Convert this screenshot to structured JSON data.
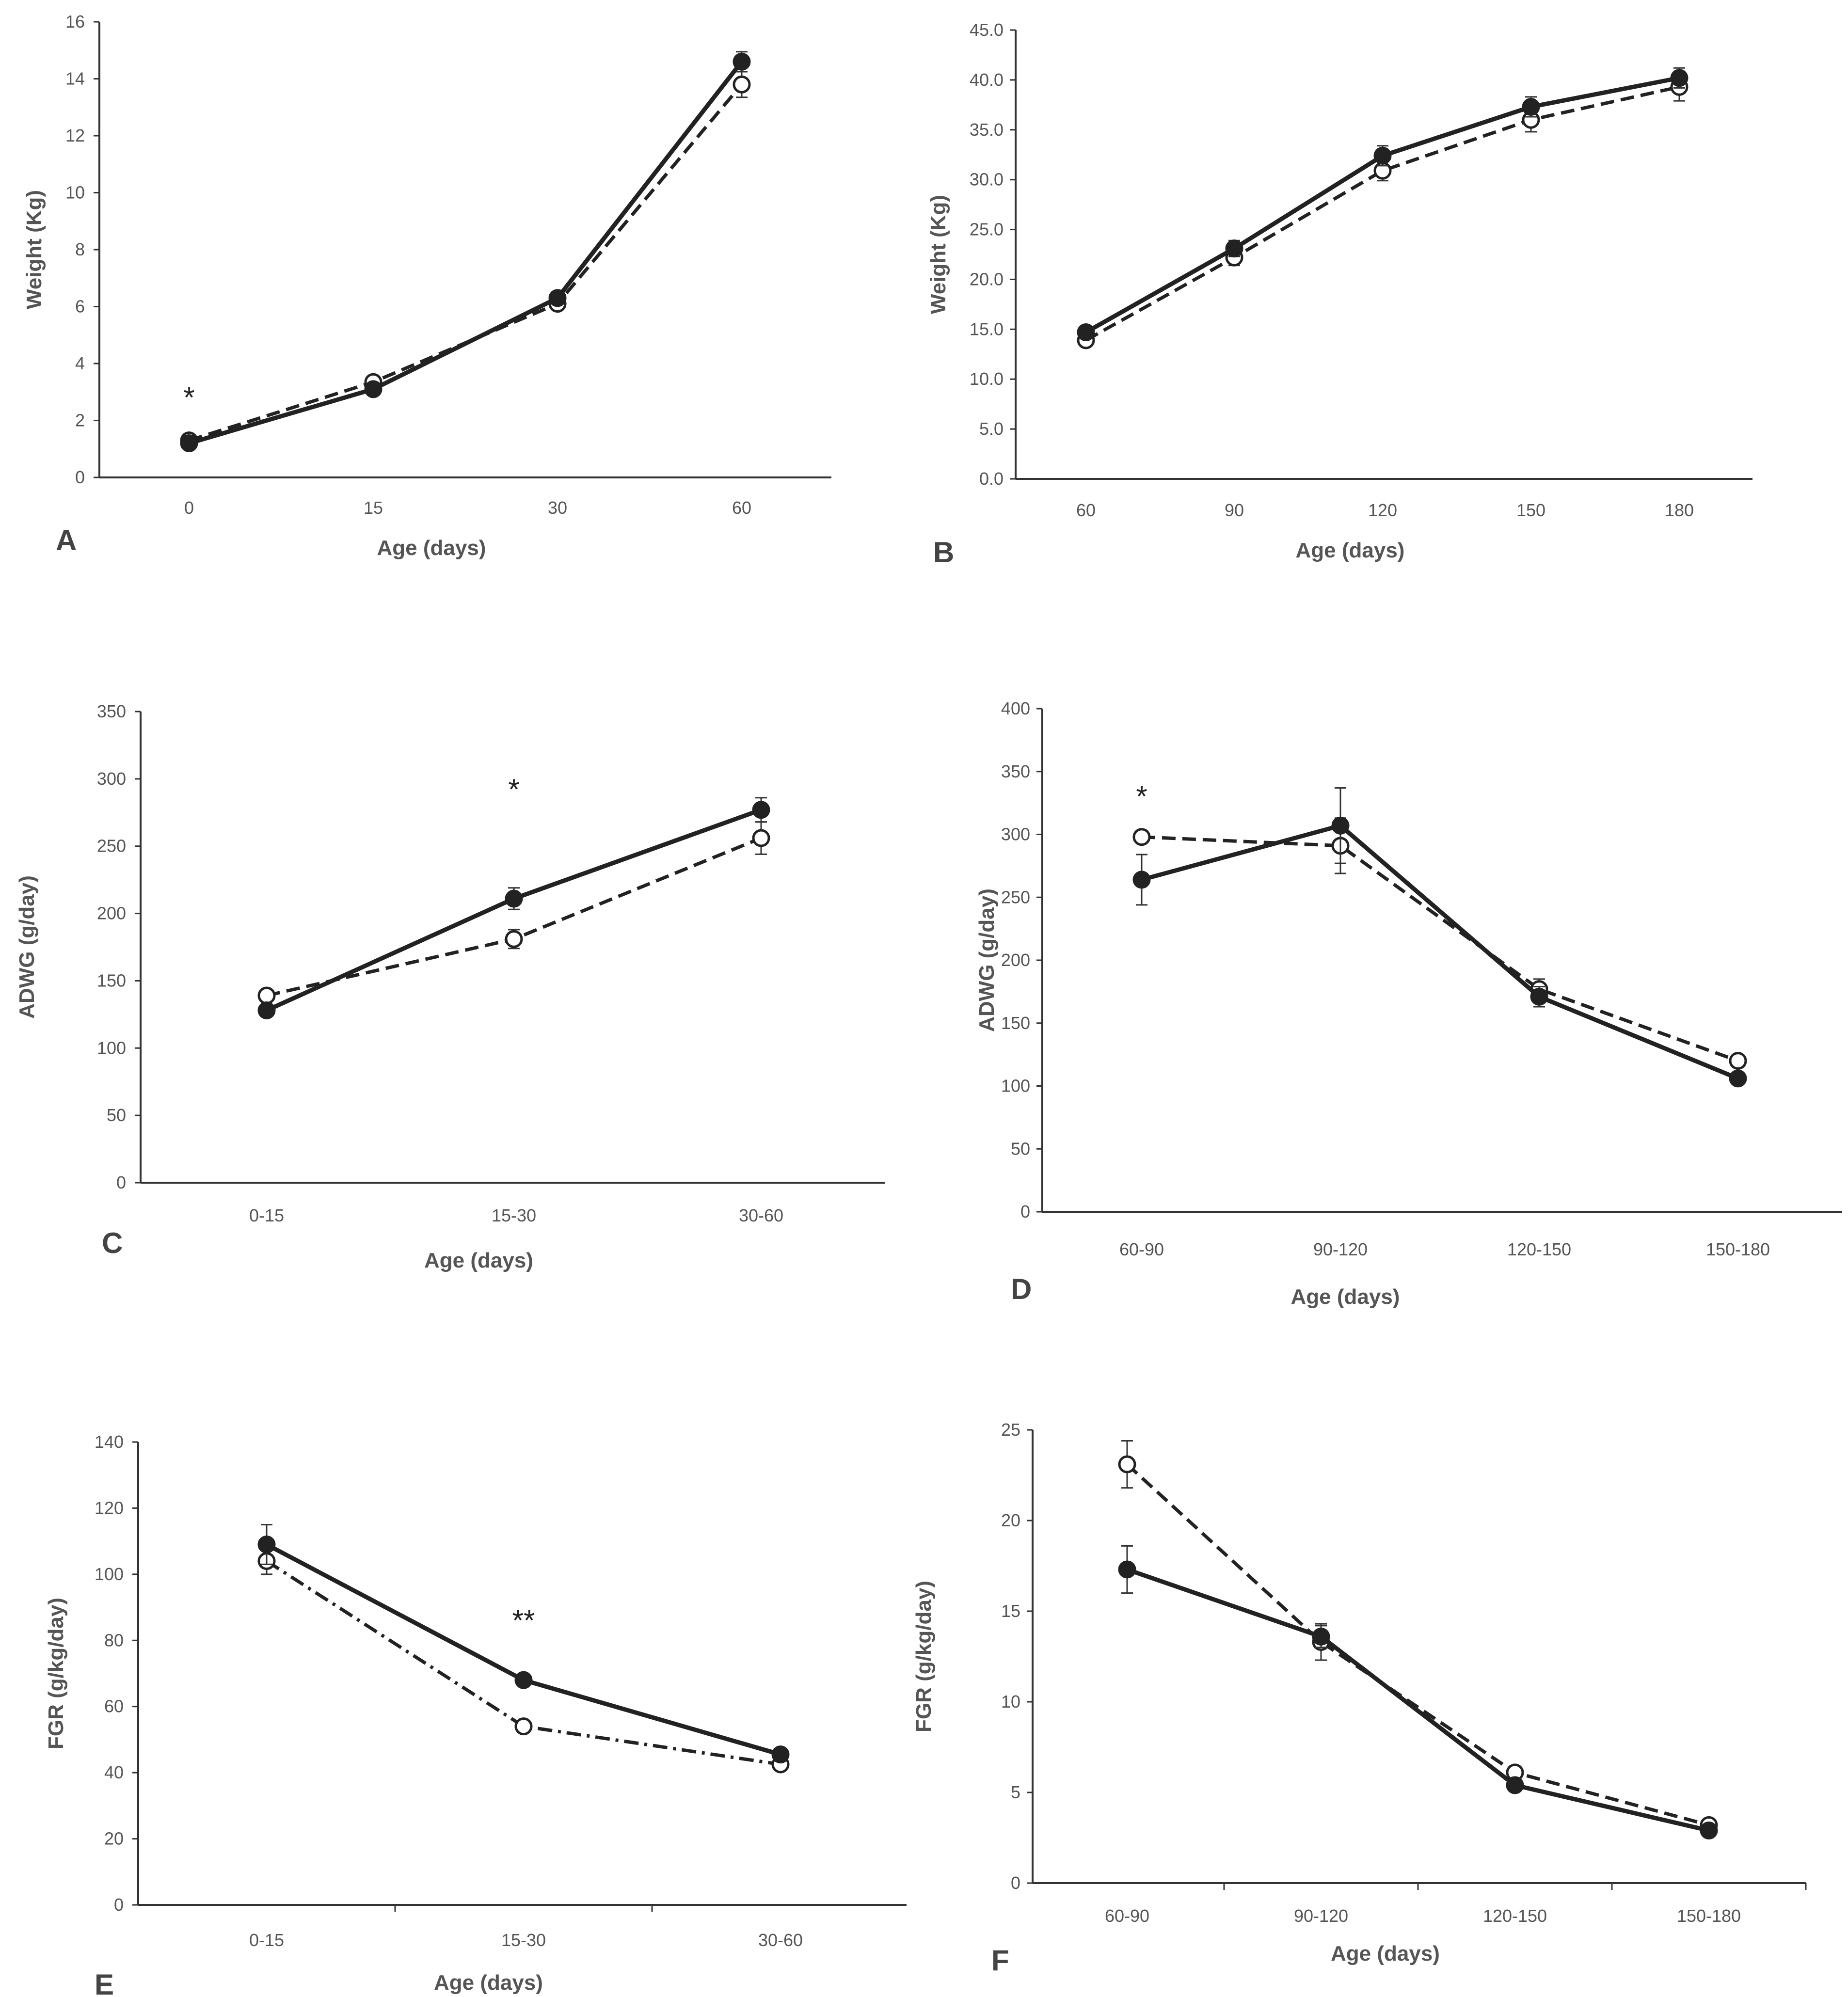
{
  "chart_data": [
    {
      "id": "A",
      "type": "line",
      "panel_label": "A",
      "categories": [
        "0",
        "15",
        "30",
        "60"
      ],
      "xlabel": "Age (days)",
      "ylabel": "Weight (Kg)",
      "ylim": [
        0,
        16
      ],
      "yticks": [
        "0",
        "2",
        "4",
        "6",
        "8",
        "10",
        "12",
        "14",
        "16"
      ],
      "series": [
        {
          "name": "solid",
          "style": "solid",
          "marker": "filled",
          "values": [
            1.2,
            3.1,
            6.3,
            14.6
          ],
          "err": [
            0.1,
            0.15,
            0.2,
            0.35
          ]
        },
        {
          "name": "dashed",
          "style": "dashed",
          "marker": "open",
          "values": [
            1.3,
            3.35,
            6.1,
            13.8
          ],
          "err": [
            0.1,
            0.15,
            0.2,
            0.45
          ]
        }
      ],
      "annotations": [
        {
          "text": "*",
          "cat": 0,
          "y": 2.8
        }
      ]
    },
    {
      "id": "B",
      "type": "line",
      "panel_label": "B",
      "categories": [
        "60",
        "90",
        "120",
        "150",
        "180"
      ],
      "xlabel": "Age (days)",
      "ylabel": "Weight (Kg)",
      "ylim": [
        0,
        45
      ],
      "yticks": [
        "0.0",
        "5.0",
        "10.0",
        "15.0",
        "20.0",
        "25.0",
        "30.0",
        "35.0",
        "40.0",
        "45.0"
      ],
      "series": [
        {
          "name": "solid",
          "style": "solid",
          "marker": "filled",
          "values": [
            14.7,
            23.1,
            32.4,
            37.3,
            40.2
          ],
          "err": [
            0.4,
            0.8,
            1.0,
            1.0,
            1.0
          ]
        },
        {
          "name": "dashed",
          "style": "dashed",
          "marker": "open",
          "values": [
            13.9,
            22.2,
            30.9,
            36.0,
            39.3
          ],
          "err": [
            0.4,
            0.8,
            1.0,
            1.2,
            1.4
          ]
        }
      ],
      "annotations": []
    },
    {
      "id": "C",
      "type": "line",
      "panel_label": "C",
      "categories": [
        "0-15",
        "15-30",
        "30-60"
      ],
      "xlabel": "Age (days)",
      "ylabel": "ADWG (g/day)",
      "ylim": [
        0,
        350
      ],
      "yticks": [
        "0",
        "50",
        "100",
        "150",
        "200",
        "250",
        "300",
        "350"
      ],
      "series": [
        {
          "name": "solid",
          "style": "solid",
          "marker": "filled",
          "values": [
            128,
            211,
            277
          ],
          "err": [
            4,
            8,
            9
          ]
        },
        {
          "name": "dashed",
          "style": "dashed",
          "marker": "open",
          "values": [
            139,
            181,
            256
          ],
          "err": [
            4,
            7,
            12
          ]
        }
      ],
      "annotations": [
        {
          "text": "*",
          "cat": 1,
          "y": 292
        }
      ]
    },
    {
      "id": "D",
      "type": "line",
      "panel_label": "D",
      "categories": [
        "60-90",
        "90-120",
        "120-150",
        "150-180"
      ],
      "xlabel": "Age (days)",
      "ylabel": "ADWG (g/day)",
      "ylim": [
        0,
        400
      ],
      "yticks": [
        "0",
        "50",
        "100",
        "150",
        "200",
        "250",
        "300",
        "350",
        "400"
      ],
      "series": [
        {
          "name": "solid",
          "style": "solid",
          "marker": "filled",
          "values": [
            264,
            307,
            171,
            106
          ],
          "err": [
            20,
            30,
            8,
            4
          ]
        },
        {
          "name": "dashed",
          "style": "dashed",
          "marker": "open",
          "values": [
            298,
            291,
            177,
            120
          ],
          "err": [
            5,
            22,
            8,
            4
          ]
        }
      ],
      "annotations": [
        {
          "text": "*",
          "cat": 0,
          "y": 330
        }
      ]
    },
    {
      "id": "E",
      "type": "line",
      "panel_label": "E",
      "categories": [
        "0-15",
        "15-30",
        "30-60"
      ],
      "xlabel": "Age (days)",
      "ylabel": "FGR (g/kg/day)",
      "ylim": [
        0,
        140
      ],
      "yticks": [
        "0",
        "20",
        "40",
        "60",
        "80",
        "100",
        "120",
        "140"
      ],
      "series": [
        {
          "name": "solid",
          "style": "solid",
          "marker": "filled",
          "values": [
            109,
            68,
            45.5
          ],
          "err": [
            6,
            2,
            1
          ]
        },
        {
          "name": "dash-dot",
          "style": "dashdot",
          "marker": "open",
          "values": [
            104,
            54,
            42.5
          ],
          "err": [
            4,
            1.5,
            1
          ]
        }
      ],
      "annotations": [
        {
          "text": "**",
          "cat": 1,
          "y": 86
        }
      ]
    },
    {
      "id": "F",
      "type": "line",
      "panel_label": "F",
      "categories": [
        "60-90",
        "90-120",
        "120-150",
        "150-180"
      ],
      "xlabel": "Age (days)",
      "ylabel": "FGR (g/kg/day)",
      "ylim": [
        0,
        25
      ],
      "yticks": [
        "0",
        "5",
        "10",
        "15",
        "20",
        "25"
      ],
      "series": [
        {
          "name": "solid",
          "style": "solid",
          "marker": "filled",
          "values": [
            17.3,
            13.6,
            5.4,
            2.9
          ],
          "err": [
            1.3,
            0.6,
            0.2,
            0.15
          ]
        },
        {
          "name": "dashed",
          "style": "dashed",
          "marker": "open",
          "values": [
            23.1,
            13.3,
            6.1,
            3.2
          ],
          "err": [
            1.3,
            1.0,
            0.2,
            0.15
          ]
        }
      ],
      "annotations": []
    }
  ]
}
